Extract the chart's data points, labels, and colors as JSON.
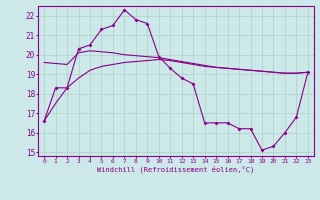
{
  "xlabel": "Windchill (Refroidissement éolien,°C)",
  "background_color": "#cde8e8",
  "grid_color": "#b0d4cc",
  "line_color": "#880088",
  "x_values": [
    0,
    1,
    2,
    3,
    4,
    5,
    6,
    7,
    8,
    9,
    10,
    11,
    12,
    13,
    14,
    15,
    16,
    17,
    18,
    19,
    20,
    21,
    22,
    23
  ],
  "ylim": [
    14.8,
    22.5
  ],
  "xlim": [
    -0.5,
    23.5
  ],
  "yticks": [
    15,
    16,
    17,
    18,
    19,
    20,
    21,
    22
  ],
  "line1_y": [
    16.6,
    18.3,
    18.3,
    20.3,
    20.5,
    21.3,
    21.5,
    22.3,
    21.8,
    21.6,
    19.9,
    19.3,
    18.8,
    18.5,
    16.5,
    16.5,
    16.5,
    16.2,
    16.2,
    15.1,
    15.3,
    16.0,
    16.8,
    19.1
  ],
  "line2_y": [
    19.6,
    19.55,
    19.5,
    20.1,
    20.2,
    20.15,
    20.1,
    20.0,
    19.95,
    19.9,
    19.85,
    19.75,
    19.65,
    19.55,
    19.45,
    19.35,
    19.3,
    19.25,
    19.2,
    19.15,
    19.1,
    19.05,
    19.05,
    19.1
  ],
  "line3_y": [
    16.6,
    17.5,
    18.3,
    18.8,
    19.2,
    19.4,
    19.5,
    19.6,
    19.65,
    19.7,
    19.75,
    19.7,
    19.6,
    19.5,
    19.4,
    19.35,
    19.3,
    19.25,
    19.2,
    19.15,
    19.1,
    19.05,
    19.05,
    19.1
  ]
}
